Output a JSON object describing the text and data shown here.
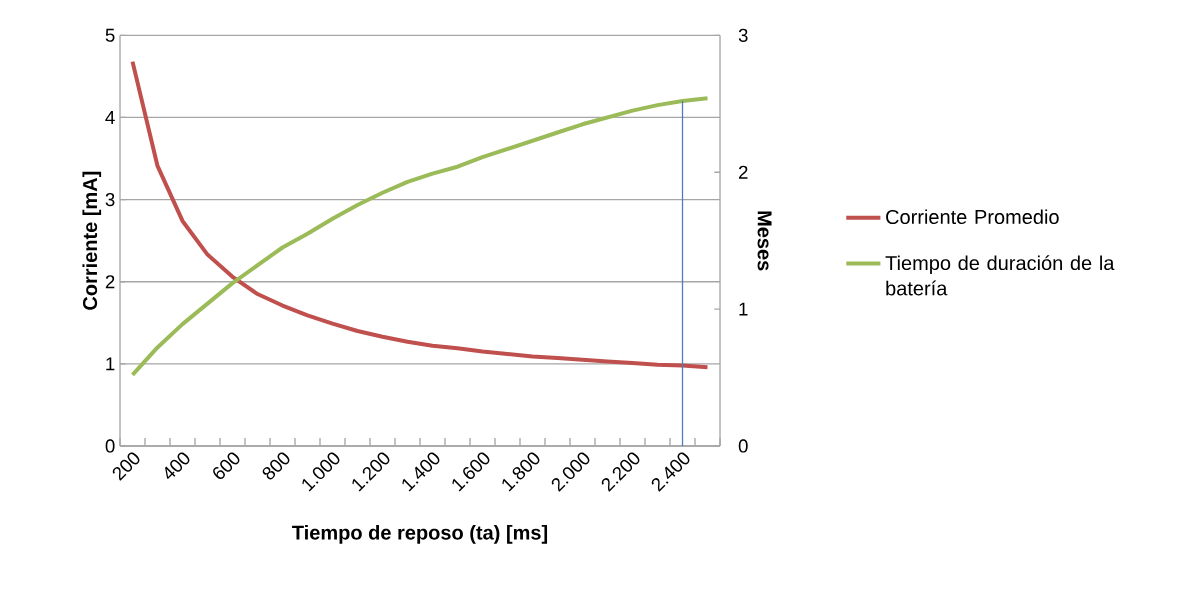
{
  "chart_data": {
    "type": "line",
    "xlabel": "Tiempo de reposo (ta) [ms]",
    "ylabel": "Corriente [mA]",
    "y2label": "Meses",
    "categories": [
      "200",
      null,
      "400",
      null,
      "600",
      null,
      "800",
      null,
      "1.000",
      null,
      "1.200",
      null,
      "1.400",
      null,
      "1.600",
      null,
      "1.800",
      null,
      "2.000",
      null,
      "2.200",
      null,
      "2.400",
      null
    ],
    "series": [
      {
        "name": "Corriente Promedio",
        "color": "#c0504d",
        "values": [
          4.68,
          3.41,
          2.74,
          2.33,
          2.06,
          1.85,
          1.71,
          1.59,
          1.49,
          1.4,
          1.33,
          1.27,
          1.22,
          1.19,
          1.15,
          1.12,
          1.09,
          1.07,
          1.05,
          1.03,
          1.01,
          0.99,
          0.98,
          0.96
        ]
      },
      {
        "name": "Tiempo de duración de la batería",
        "color": "#9bbb59",
        "axis": "y2",
        "values": [
          0.52,
          0.72,
          0.89,
          1.04,
          1.19,
          1.32,
          1.45,
          1.55,
          1.66,
          1.76,
          1.85,
          1.93,
          1.99,
          2.04,
          2.11,
          2.17,
          2.23,
          2.29,
          2.35,
          2.4,
          2.45,
          2.49,
          2.52,
          2.54
        ]
      }
    ],
    "ylim": [
      0,
      5
    ],
    "yticks": [
      0,
      1,
      2,
      3,
      4,
      5
    ],
    "y2lim": [
      0,
      3
    ],
    "y2ticks": [
      0,
      1,
      2,
      3
    ],
    "ref_lines": [
      {
        "axis": "x",
        "value": "2.400",
        "color": "#4a7ebb"
      }
    ],
    "grid": "y",
    "legend": "right",
    "marker": "none",
    "line_style": "solid"
  }
}
